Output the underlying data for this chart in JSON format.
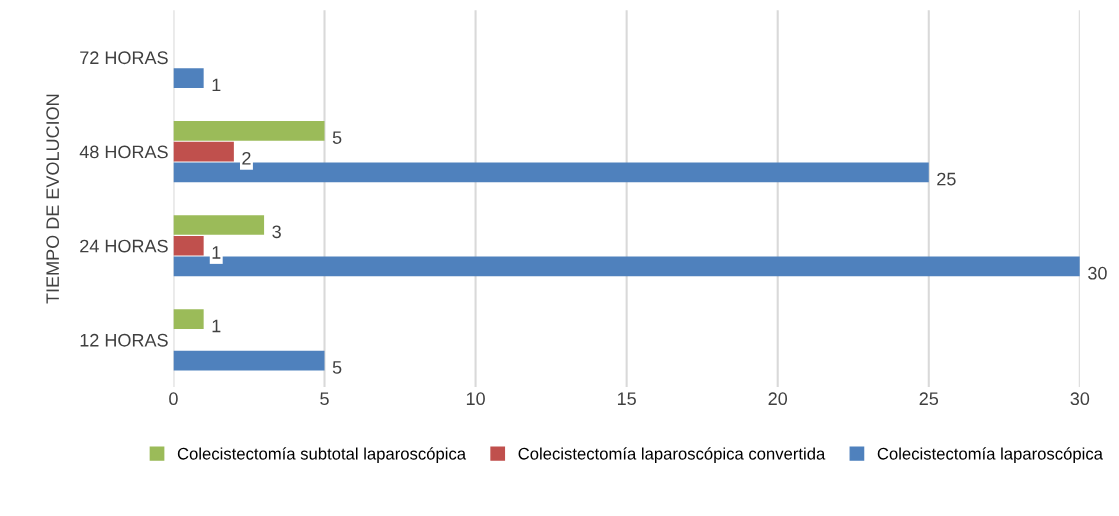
{
  "chart_data": {
    "type": "bar",
    "orientation": "horizontal",
    "ylabel": "TIEMPO DE EVOLUCION",
    "categories": [
      "72 HORAS",
      "48 HORAS",
      "24 HORAS",
      "12 HORAS"
    ],
    "series": [
      {
        "name": "Colecistectomía subtotal laparoscópica",
        "color": "#9bbb59",
        "values": [
          null,
          5,
          3,
          1
        ]
      },
      {
        "name": "Colecistectomía laparoscópica convertida",
        "color": "#c0504d",
        "values": [
          null,
          2,
          1,
          null
        ]
      },
      {
        "name": "Colecistectomía laparoscópica",
        "color": "#4f81bd",
        "values": [
          1,
          25,
          30,
          5
        ]
      }
    ],
    "xlim": [
      0,
      30
    ],
    "xticks": [
      0,
      5,
      10,
      15,
      20,
      25,
      30
    ],
    "grid": "x",
    "legend": "bottom",
    "data_labels": true
  }
}
